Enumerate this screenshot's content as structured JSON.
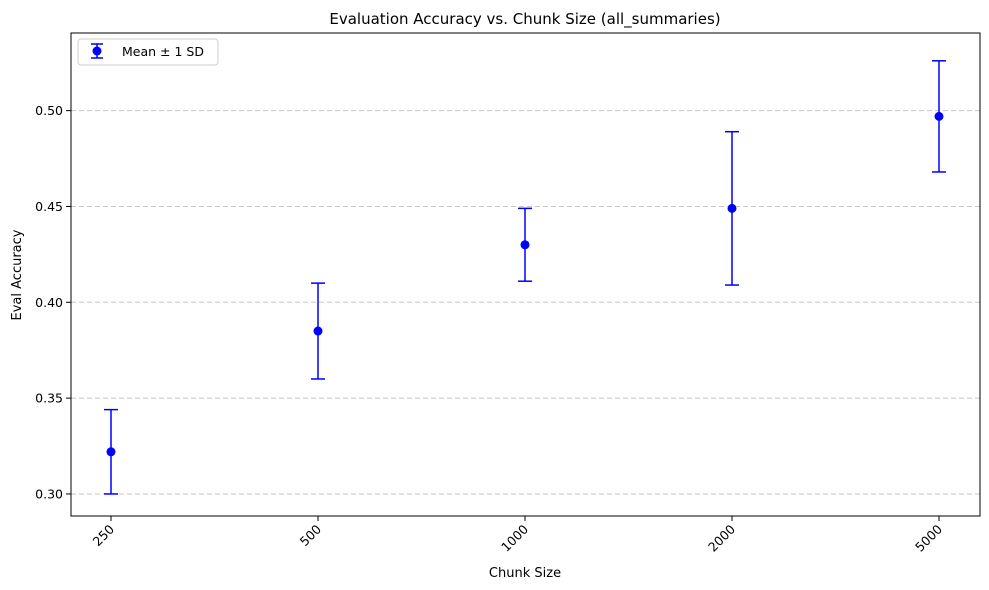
{
  "chart_data": {
    "type": "scatter",
    "title": "Evaluation Accuracy vs. Chunk Size (all_summaries)",
    "xlabel": "Chunk Size",
    "ylabel": "Eval Accuracy",
    "categories": [
      "250",
      "500",
      "1000",
      "2000",
      "5000"
    ],
    "series": [
      {
        "name": "Mean ± 1 SD",
        "values": [
          0.322,
          0.385,
          0.43,
          0.449,
          0.497
        ],
        "error": [
          0.022,
          0.025,
          0.019,
          0.04,
          0.029
        ]
      }
    ],
    "ylim": [
      0.2885,
      0.5405
    ],
    "yticks": [
      "0.30",
      "0.35",
      "0.40",
      "0.45",
      "0.50"
    ],
    "ytick_values": [
      0.3,
      0.35,
      0.4,
      0.45,
      0.5
    ],
    "grid": "horizontal dashed",
    "legend_position": "top-left",
    "xtick_rotation": "45 degrees",
    "color": "#0000ff",
    "grid_color": "#c8c8c8"
  }
}
